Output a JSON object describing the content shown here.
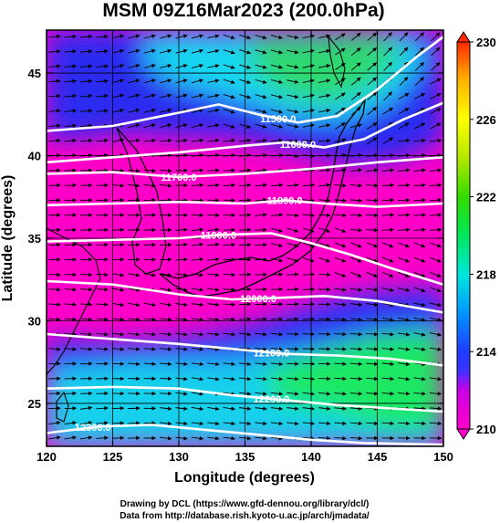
{
  "chart_data": {
    "type": "heatmap",
    "title": "MSM 09Z16Mar2023 (200.0hPa)",
    "xlabel": "Longitude (degrees)",
    "ylabel": "Latitude  (degrees)",
    "xlim": [
      120,
      150
    ],
    "ylim": [
      22.4,
      47.6
    ],
    "x_ticks": [
      "120",
      "125",
      "130",
      "135",
      "140",
      "145",
      "150"
    ],
    "y_ticks": [
      "25",
      "30",
      "35",
      "40",
      "45"
    ],
    "colorbar": {
      "range": [
        210,
        230
      ],
      "ticks": [
        "210",
        "214",
        "218",
        "222",
        "226",
        "230"
      ],
      "stops": [
        {
          "value": 210,
          "color": "#ff00c8"
        },
        {
          "value": 212,
          "color": "#c800e6"
        },
        {
          "value": 213,
          "color": "#3c32ff"
        },
        {
          "value": 214,
          "color": "#1e3cff"
        },
        {
          "value": 216,
          "color": "#0096ff"
        },
        {
          "value": 218,
          "color": "#00e6dc"
        },
        {
          "value": 220,
          "color": "#00e65a"
        },
        {
          "value": 222,
          "color": "#32dc00"
        },
        {
          "value": 224,
          "color": "#b4e600"
        },
        {
          "value": 226,
          "color": "#ffff00"
        },
        {
          "value": 228,
          "color": "#ffb400"
        },
        {
          "value": 230,
          "color": "#ff2800"
        }
      ]
    },
    "contours": [
      {
        "label": "11500.0",
        "label_lon": 137.5,
        "points": [
          [
            120,
            41.5
          ],
          [
            125,
            41.8
          ],
          [
            130,
            42.6
          ],
          [
            133,
            43.1
          ],
          [
            136,
            42.5
          ],
          [
            139,
            42.0
          ],
          [
            142,
            42.4
          ],
          [
            145,
            44.0
          ],
          [
            148,
            46.0
          ],
          [
            150,
            47.2
          ]
        ]
      },
      {
        "label": "11600.0",
        "label_lon": 139.0,
        "points": [
          [
            120,
            39.6
          ],
          [
            125,
            39.9
          ],
          [
            130,
            40.2
          ],
          [
            135,
            40.6
          ],
          [
            138,
            40.8
          ],
          [
            141,
            40.5
          ],
          [
            144,
            41.0
          ],
          [
            147,
            42.2
          ],
          [
            150,
            43.2
          ]
        ]
      },
      {
        "label": "11700.0",
        "label_lon": 130.0,
        "points": [
          [
            120,
            38.9
          ],
          [
            125,
            39.0
          ],
          [
            130,
            38.7
          ],
          [
            135,
            38.9
          ],
          [
            140,
            39.2
          ],
          [
            145,
            39.6
          ],
          [
            150,
            39.9
          ]
        ]
      },
      {
        "label": "11800.0",
        "label_lon": 138.0,
        "points": [
          [
            120,
            37.0
          ],
          [
            125,
            37.1
          ],
          [
            130,
            37.2
          ],
          [
            135,
            37.1
          ],
          [
            138,
            37.3
          ],
          [
            141,
            37.1
          ],
          [
            145,
            36.9
          ],
          [
            150,
            37.1
          ]
        ]
      },
      {
        "label": "11900.0",
        "label_lon": 133.0,
        "points": [
          [
            120,
            34.8
          ],
          [
            125,
            34.9
          ],
          [
            130,
            35.0
          ],
          [
            133,
            35.2
          ],
          [
            137,
            35.3
          ],
          [
            140,
            34.7
          ],
          [
            143,
            34.0
          ],
          [
            146,
            33.2
          ],
          [
            150,
            32.2
          ]
        ]
      },
      {
        "label": "12000.0",
        "label_lon": 136.0,
        "points": [
          [
            120,
            32.4
          ],
          [
            125,
            32.2
          ],
          [
            130,
            31.6
          ],
          [
            134,
            31.3
          ],
          [
            138,
            31.4
          ],
          [
            141,
            31.5
          ],
          [
            145,
            31.2
          ],
          [
            150,
            30.5
          ]
        ]
      },
      {
        "label": "12100.0",
        "label_lon": 137.0,
        "points": [
          [
            120,
            29.2
          ],
          [
            125,
            28.9
          ],
          [
            130,
            28.6
          ],
          [
            134,
            28.3
          ],
          [
            138,
            28.0
          ],
          [
            142,
            27.9
          ],
          [
            146,
            27.7
          ],
          [
            150,
            27.3
          ]
        ]
      },
      {
        "label": "12200.0",
        "label_lon": 137.0,
        "points": [
          [
            120,
            25.9
          ],
          [
            125,
            26.0
          ],
          [
            130,
            25.9
          ],
          [
            134,
            25.5
          ],
          [
            138,
            25.2
          ],
          [
            142,
            24.9
          ],
          [
            146,
            24.7
          ],
          [
            150,
            24.5
          ]
        ]
      },
      {
        "label": "12300.0",
        "label_lon": 123.5,
        "points": [
          [
            120,
            23.2
          ],
          [
            124,
            23.6
          ],
          [
            128,
            23.7
          ],
          [
            132,
            23.4
          ],
          [
            136,
            23.1
          ],
          [
            140,
            22.8
          ],
          [
            144,
            22.6
          ],
          [
            150,
            22.5
          ]
        ]
      }
    ]
  },
  "credits": {
    "line1": "Drawing by DCL (https://www.gfd-dennou.org/library/dcl/)",
    "line2": "Data from http://database.rish.kyoto-u.ac.jp/arch/jmadata/"
  }
}
